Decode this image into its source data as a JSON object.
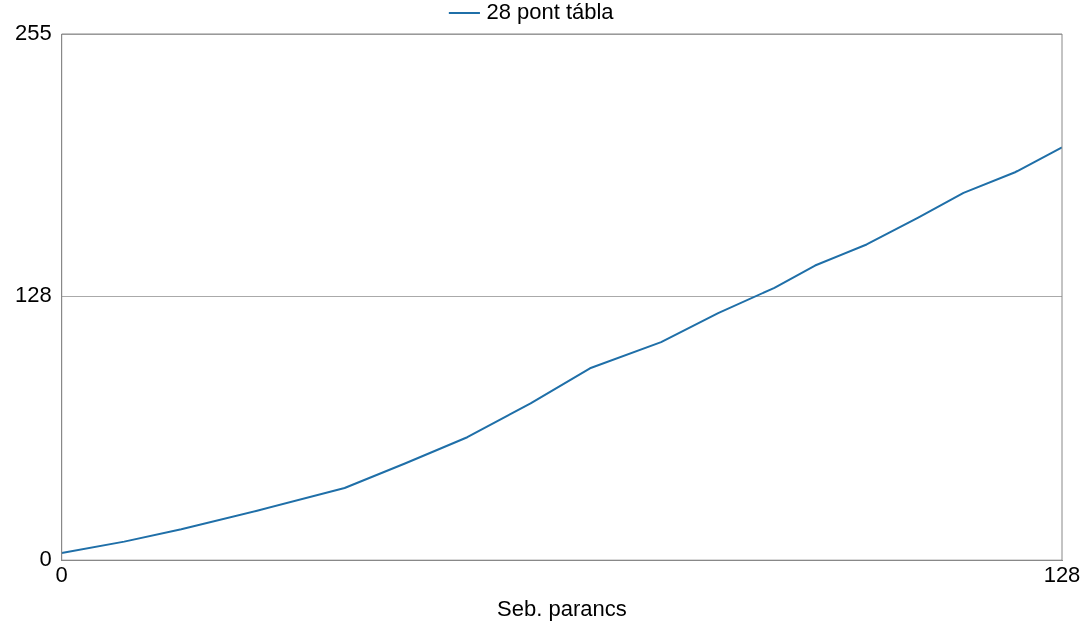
{
  "chart_data": {
    "type": "line",
    "xlabel": "Seb. parancs",
    "x": [
      0,
      8,
      15.3,
      25,
      36.2,
      44,
      51.9,
      60,
      67.6,
      76.7,
      84,
      91.2,
      96.4,
      103,
      109.6,
      115.4,
      122,
      128
    ],
    "series": [
      {
        "name": "28 pont tábla",
        "color": "#1f6fa8",
        "values": [
          3.5,
          9,
          15,
          24,
          35,
          47,
          59.6,
          76,
          93,
          105.7,
          119.7,
          132,
          142.8,
          153,
          166,
          178,
          188,
          200
        ]
      }
    ],
    "xlim": [
      0,
      128
    ],
    "xticks": [
      0,
      128
    ],
    "ylim": [
      0,
      255
    ],
    "yticks": [
      0,
      128,
      255
    ],
    "grid": "y",
    "legend": "top",
    "marker": "none",
    "line_style": "solid"
  }
}
